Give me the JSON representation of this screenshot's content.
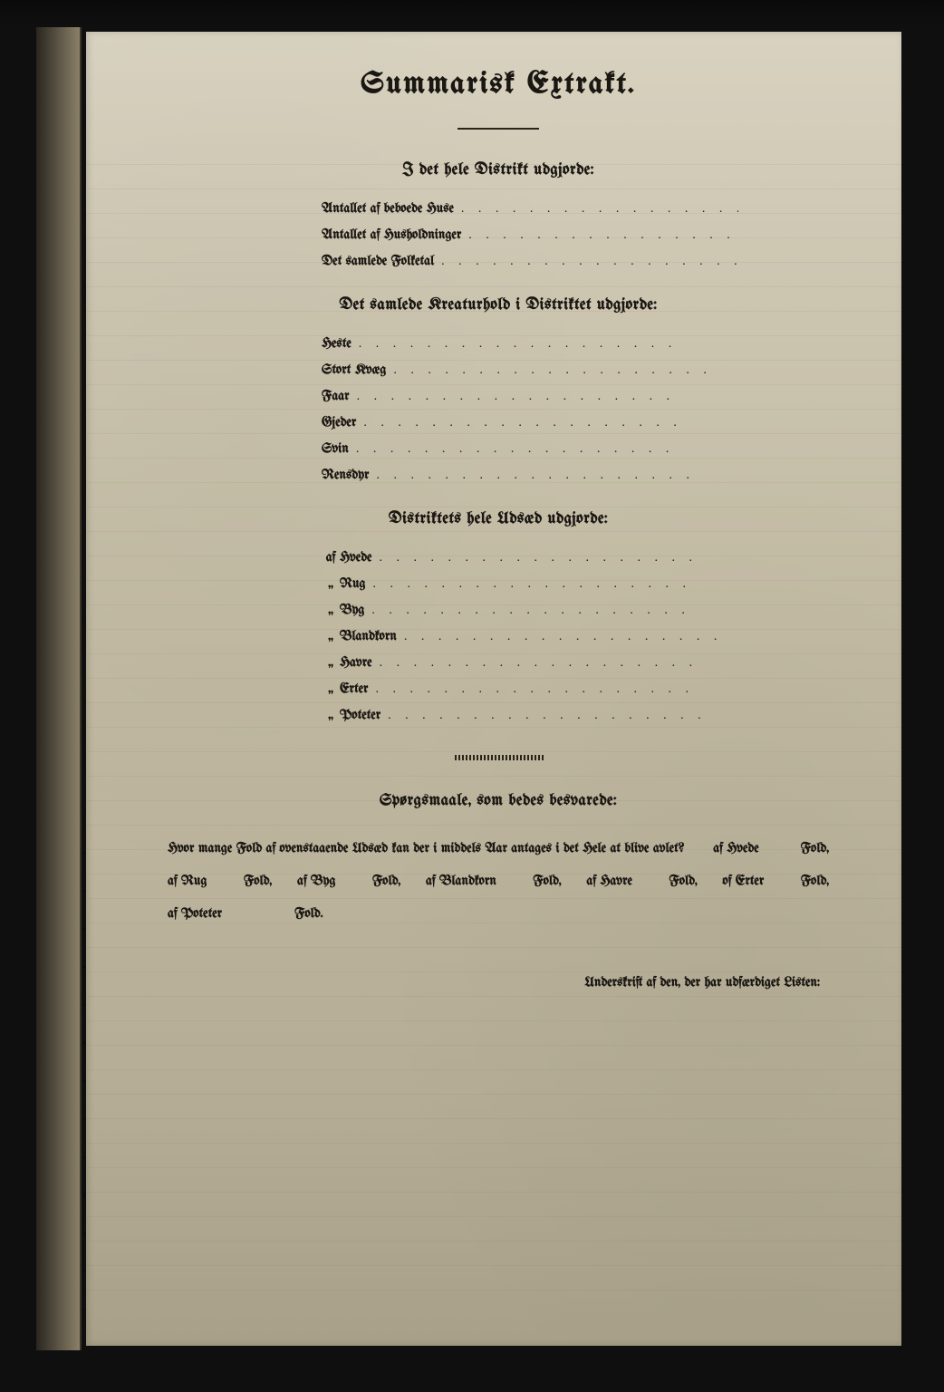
{
  "document": {
    "title": "Summarisk Extrakt.",
    "background_color": "#c8c0a8",
    "text_color": "#1a1612",
    "font": "blackletter/fraktur"
  },
  "section1": {
    "heading": "I det hele Distrikt udgjorde:",
    "items": [
      {
        "label": "Antallet af beboede Huse"
      },
      {
        "label": "Antallet af Husholdninger"
      },
      {
        "label": "Det samlede Folketal"
      }
    ]
  },
  "section2": {
    "heading": "Det samlede Kreaturhold i Distriktet udgjorde:",
    "items": [
      {
        "label": "Heste"
      },
      {
        "label": "Stort Kvæg"
      },
      {
        "label": "Faar"
      },
      {
        "label": "Gjeder"
      },
      {
        "label": "Svin"
      },
      {
        "label": "Rensdyr"
      }
    ]
  },
  "section3": {
    "heading": "Distriktets hele Udsæd udgjorde:",
    "prefix": "af",
    "ditto": "„",
    "items": [
      {
        "label": "Hvede"
      },
      {
        "label": "Rug"
      },
      {
        "label": "Byg"
      },
      {
        "label": "Blandkorn"
      },
      {
        "label": "Havre"
      },
      {
        "label": "Erter"
      },
      {
        "label": "Poteter"
      }
    ]
  },
  "section4": {
    "heading": "Spørgsmaale, som bedes besvarede:",
    "intro": "Hvor mange Fold af ovenstaaende Udsæd kan der i middels Aar antages i det Hele at blive avlet?",
    "pairs": [
      {
        "crop": "af Hvede",
        "unit": "Fold,"
      },
      {
        "crop": "af Rug",
        "unit": "Fold,"
      },
      {
        "crop": "af Byg",
        "unit": "Fold,"
      },
      {
        "crop": "af Blandkorn",
        "unit": "Fold,"
      },
      {
        "crop": "af Havre",
        "unit": "Fold,"
      },
      {
        "crop": "of Erter",
        "unit": "Fold,"
      },
      {
        "crop": "af Poteter",
        "unit": "Fold."
      }
    ]
  },
  "signature": {
    "text": "Underskrift af den, der har udfærdiget Listen:"
  },
  "dot_leader_char": ". . . . . . . . . . . . . . . . . . ."
}
